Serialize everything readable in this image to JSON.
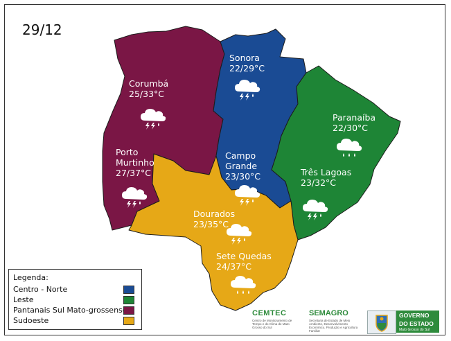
{
  "date": "29/12",
  "colors": {
    "centro_norte": "#1a4b94",
    "leste": "#1e8536",
    "pantanais": "#7a1645",
    "sudoeste": "#e6a817",
    "border": "#1c1c1c"
  },
  "cities": [
    {
      "id": "sonora",
      "name": "Sonora",
      "temp": "22/29°C",
      "icon": "thunderstorm-icon"
    },
    {
      "id": "corumba",
      "name": "Corumbá",
      "temp": "25/33°C",
      "icon": "thunderstorm-icon"
    },
    {
      "id": "porto-murtinho",
      "name_line1": "Porto",
      "name_line2": "Murtinho",
      "temp": "27/37°C",
      "icon": "thunderstorm-icon"
    },
    {
      "id": "campo-grande",
      "name_line1": "Campo",
      "name_line2": "Grande",
      "temp": "23/30°C",
      "icon": "thunderstorm-icon"
    },
    {
      "id": "paranaiba",
      "name": "Paranaíba",
      "temp": "22/30°C",
      "icon": "rain-icon"
    },
    {
      "id": "tres-lagoas",
      "name": "Três Lagoas",
      "temp": "23/32°C",
      "icon": "thunderstorm-icon"
    },
    {
      "id": "dourados",
      "name": "Dourados",
      "temp": "23/35°C",
      "icon": "thunderstorm-icon"
    },
    {
      "id": "sete-quedas",
      "name": "Sete Quedas",
      "temp": "24/37°C",
      "icon": "rain-icon"
    }
  ],
  "legend": {
    "title": "Legenda:",
    "items": [
      {
        "label": "Centro - Norte",
        "color": "#1a4b94"
      },
      {
        "label": "Leste",
        "color": "#1e8536"
      },
      {
        "label": "Pantanais Sul Mato-grossense",
        "color": "#7a1645"
      },
      {
        "label": "Sudoeste",
        "color": "#e6a817"
      }
    ]
  },
  "logos": {
    "cemtec": {
      "name": "CEMTEC",
      "sub": "Centro de Monitoramento de Tempo e do Clima de Mato Grosso do Sul"
    },
    "semagro": {
      "name": "SEMAGRO",
      "sub": "Secretaria de Estado de Meio Ambiente, Desenvolvimento Econômico, Produção e Agricultura Familiar"
    },
    "governo": {
      "line1": "GOVERNO",
      "line2": "DO ESTADO",
      "line3": "Mato Grosso do Sul"
    }
  }
}
